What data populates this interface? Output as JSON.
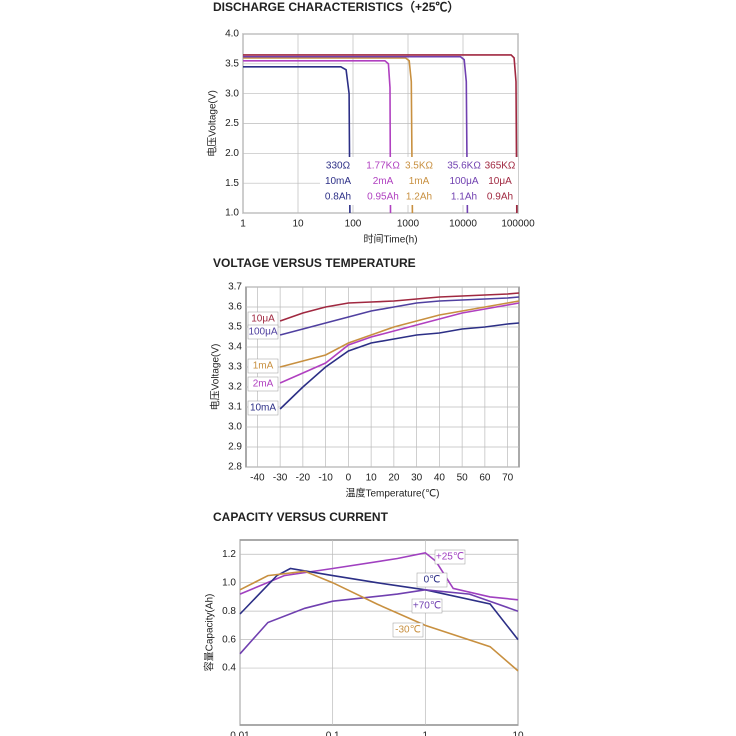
{
  "chart_data": [
    {
      "type": "line",
      "title": "DISCHARGE CHARACTERISTICS（+25℃）",
      "x_label": "时间Time(h)",
      "y_label": "电压Voltage(V)",
      "xlog": true,
      "xlim": [
        1,
        100000
      ],
      "xticks": [
        1,
        10,
        100,
        1000,
        10000,
        100000
      ],
      "ylim": [
        1,
        4
      ],
      "yticks": [
        {
          "value": 1,
          "label": "1.0"
        },
        1.5,
        {
          "value": 2,
          "label": "2.0"
        },
        2.5,
        {
          "value": 3,
          "label": "3.0"
        },
        3.5,
        {
          "value": 4,
          "label": "4.0"
        }
      ],
      "grid": true,
      "series": [
        {
          "name": "330Ω",
          "current": "10mA",
          "capacity": "0.8Ah",
          "color": "#2c2f86",
          "x": [
            1,
            60,
            75,
            85,
            88
          ],
          "values": [
            3.45,
            3.45,
            3.4,
            3.0,
            1.0
          ]
        },
        {
          "name": "1.77KΩ",
          "current": "2mA",
          "capacity": "0.95Ah",
          "color": "#b040c0",
          "x": [
            1,
            380,
            440,
            470,
            480
          ],
          "values": [
            3.55,
            3.55,
            3.5,
            3.1,
            1.0
          ]
        },
        {
          "name": "3.5KΩ",
          "current": "1mA",
          "capacity": "1.2Ah",
          "color": "#c89040",
          "x": [
            1,
            900,
            1050,
            1150,
            1200
          ],
          "values": [
            3.6,
            3.6,
            3.55,
            3.2,
            1.0
          ]
        },
        {
          "name": "35.6KΩ",
          "current": "100μA",
          "capacity": "1.1Ah",
          "color": "#7040b0",
          "x": [
            1,
            9000,
            10500,
            11500,
            12000
          ],
          "values": [
            3.62,
            3.62,
            3.57,
            3.2,
            1.0
          ]
        },
        {
          "name": "365KΩ",
          "current": "10μA",
          "capacity": "0.9Ah",
          "color": "#a02840",
          "x": [
            1,
            75000,
            85000,
            92000,
            95000
          ],
          "values": [
            3.65,
            3.65,
            3.6,
            3.2,
            1.0
          ]
        }
      ]
    },
    {
      "type": "line",
      "title": "VOLTAGE VERSUS TEMPERATURE",
      "x_label": "温度Temperature(℃)",
      "y_label": "电压Voltage(V)",
      "xlim": [
        -45,
        75
      ],
      "xticks": [
        -40,
        -30,
        -20,
        -10,
        0,
        10,
        20,
        30,
        40,
        50,
        60,
        70
      ],
      "ylim": [
        2.8,
        3.7
      ],
      "yticks": [
        2.8,
        2.9,
        {
          "value": 3,
          "label": "3.0"
        },
        3.1,
        3.2,
        3.3,
        3.4,
        3.5,
        3.6,
        3.7
      ],
      "grid": true,
      "x": [
        -30,
        -20,
        -10,
        0,
        10,
        20,
        30,
        40,
        50,
        60,
        70,
        75
      ],
      "series": [
        {
          "name": "10μA",
          "color": "#a02840",
          "values": [
            3.53,
            3.57,
            3.6,
            3.62,
            3.625,
            3.63,
            3.64,
            3.65,
            3.655,
            3.66,
            3.665,
            3.67
          ]
        },
        {
          "name": "100μA",
          "color": "#5040a0",
          "values": [
            3.46,
            3.49,
            3.52,
            3.55,
            3.58,
            3.6,
            3.62,
            3.63,
            3.635,
            3.64,
            3.645,
            3.65
          ]
        },
        {
          "name": "1mA",
          "color": "#c89040",
          "values": [
            3.3,
            3.33,
            3.36,
            3.42,
            3.46,
            3.5,
            3.53,
            3.56,
            3.58,
            3.6,
            3.62,
            3.63
          ]
        },
        {
          "name": "2mA",
          "color": "#b040c0",
          "values": [
            3.22,
            3.27,
            3.32,
            3.41,
            3.45,
            3.48,
            3.51,
            3.54,
            3.57,
            3.59,
            3.61,
            3.62
          ]
        },
        {
          "name": "10mA",
          "color": "#2c2f86",
          "values": [
            3.09,
            3.2,
            3.3,
            3.38,
            3.42,
            3.44,
            3.46,
            3.47,
            3.49,
            3.5,
            3.515,
            3.52
          ]
        }
      ]
    },
    {
      "type": "line",
      "title": "CAPACITY VERSUS CURRENT",
      "y_label": "容量Capacity(Ah)",
      "xlog": true,
      "xlim": [
        0.01,
        10
      ],
      "xticks": [
        0.01,
        0.1,
        1,
        10
      ],
      "ylim": [
        0,
        1.3
      ],
      "yticks": [
        0.4,
        0.6,
        0.8,
        {
          "value": 1,
          "label": "1.0"
        },
        1.2
      ],
      "grid": true,
      "series": [
        {
          "name": "+25℃",
          "color": "#a040c0",
          "x": [
            0.01,
            0.03,
            0.1,
            0.5,
            1,
            1.3,
            2,
            5,
            10
          ],
          "values": [
            0.92,
            1.05,
            1.1,
            1.17,
            1.21,
            1.15,
            0.96,
            0.9,
            0.88
          ]
        },
        {
          "name": "0℃",
          "color": "#2c2f86",
          "x": [
            0.01,
            0.025,
            0.035,
            0.1,
            0.3,
            1,
            5,
            10
          ],
          "values": [
            0.78,
            1.05,
            1.1,
            1.05,
            1.0,
            0.95,
            0.85,
            0.6
          ]
        },
        {
          "name": "+70℃",
          "color": "#7040b0",
          "x": [
            0.01,
            0.02,
            0.05,
            0.1,
            0.5,
            1,
            3,
            10
          ],
          "values": [
            0.5,
            0.72,
            0.82,
            0.87,
            0.92,
            0.95,
            0.92,
            0.8
          ]
        },
        {
          "name": "-30℃",
          "color": "#c89040",
          "x": [
            0.01,
            0.02,
            0.05,
            0.1,
            0.3,
            1,
            5,
            10
          ],
          "values": [
            0.95,
            1.05,
            1.08,
            1.0,
            0.85,
            0.7,
            0.55,
            0.38
          ]
        }
      ]
    }
  ]
}
